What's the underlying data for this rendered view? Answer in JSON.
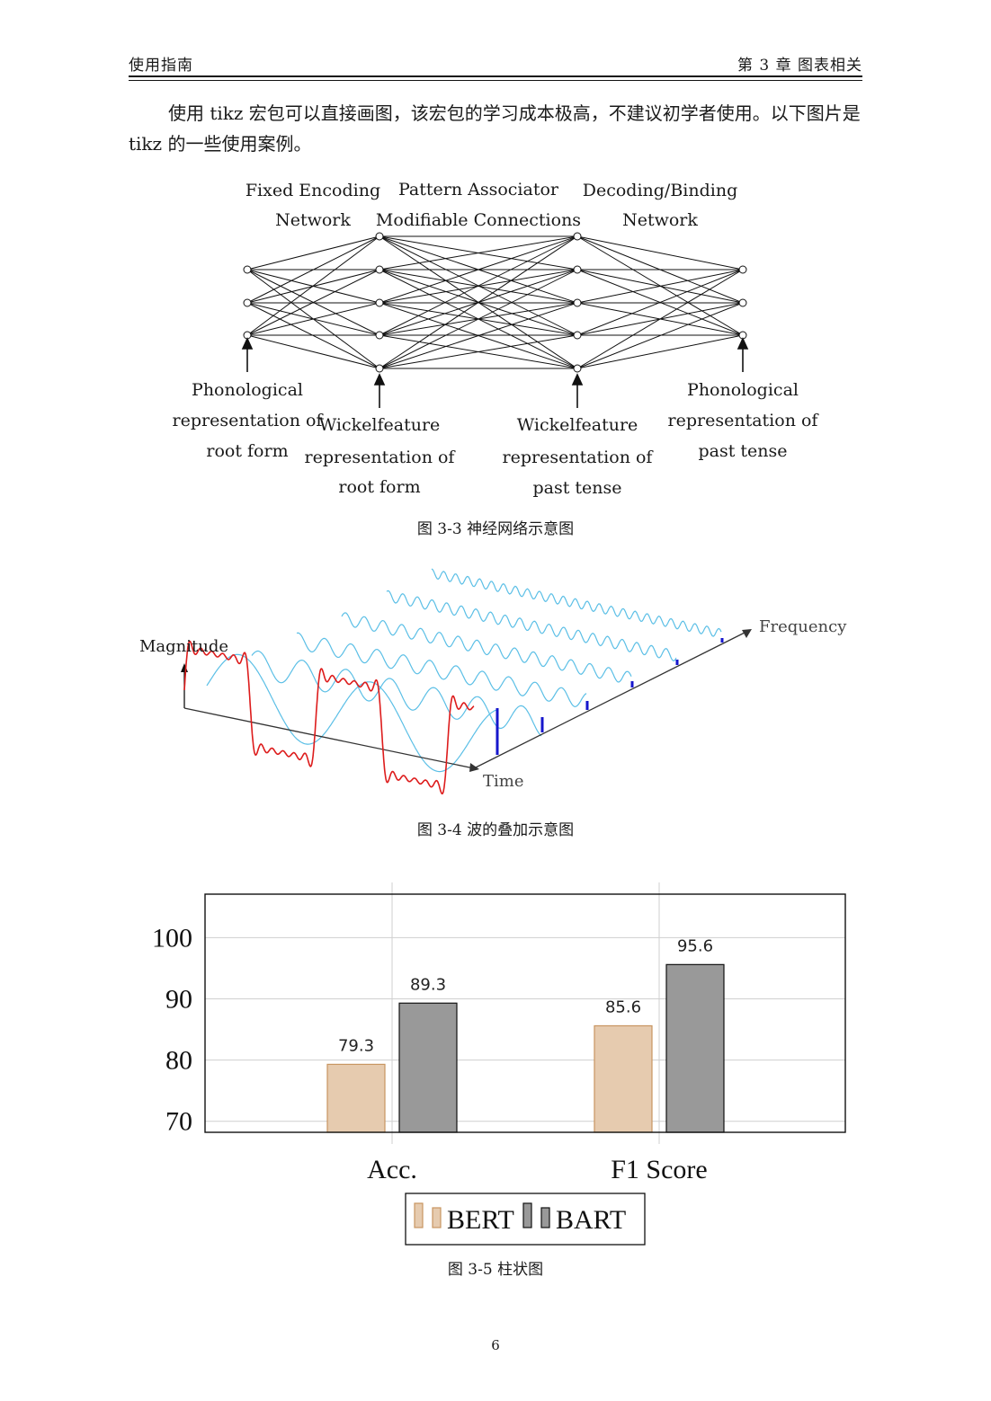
{
  "header": {
    "left": "使用指南",
    "right": "第 3 章  图表相关"
  },
  "paragraph": "使用 tikz 宏包可以直接画图，该宏包的学习成本极高，不建议初学者使用。以下图片是 tikz 的一些使用案例。",
  "figure1": {
    "caption": "图 3-3  神经网络示意图",
    "titles": [
      [
        "Fixed Encoding",
        "Network"
      ],
      [
        "Pattern Associator",
        "Modifiable Connections"
      ],
      [
        "Decoding/Binding",
        "Network"
      ]
    ],
    "bottom_labels": [
      [
        "Phonological",
        "representation of",
        "root form"
      ],
      [
        "Wickelfeature",
        "representation of",
        "root form"
      ],
      [
        "Wickelfeature",
        "representation of",
        "past tense"
      ],
      [
        "Phonological",
        "representation of",
        "past tense"
      ]
    ]
  },
  "figure2": {
    "caption": "图 3-4  波的叠加示意图",
    "axis_magnitude": "Magnitude",
    "axis_time": "Time",
    "axis_frequency": "Frequency",
    "colors": {
      "square_wave": "#dd1c1c",
      "components": "#5bbfe6",
      "spectrum": "#1616cc"
    }
  },
  "figure3": {
    "caption": "图 3-5  柱状图",
    "chart_data": {
      "type": "bar",
      "categories": [
        "Acc.",
        "F1 Score"
      ],
      "series": [
        {
          "name": "BERT",
          "values": [
            79.3,
            85.6
          ],
          "color": "#e6cbaf",
          "stroke": "#c89560"
        },
        {
          "name": "BART",
          "values": [
            89.3,
            95.6
          ],
          "color": "#999999",
          "stroke": "#111111"
        }
      ],
      "yticks": [
        70,
        80,
        90,
        100
      ],
      "ylim": [
        68.2,
        107.1
      ],
      "grid": true,
      "legend_position": "bottom-center"
    }
  },
  "page_number": "6"
}
